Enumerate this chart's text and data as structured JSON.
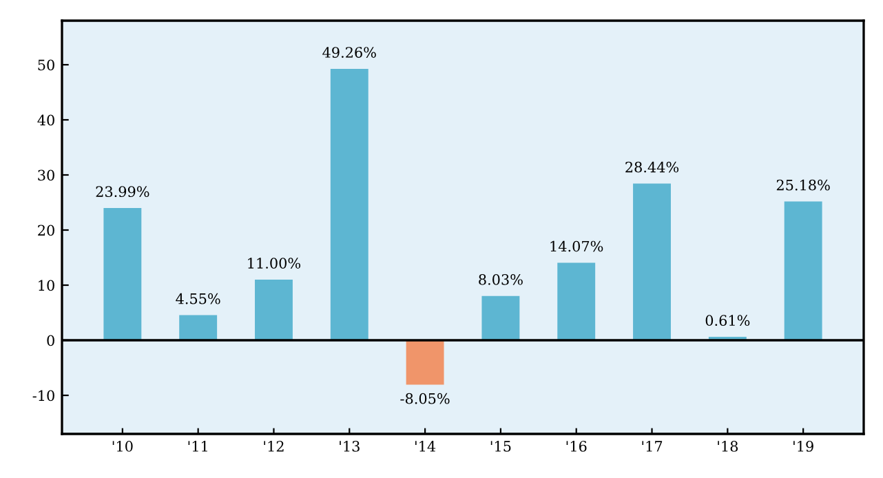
{
  "chart_data": {
    "type": "bar",
    "categories": [
      "'10",
      "'11",
      "'12",
      "'13",
      "'14",
      "'15",
      "'16",
      "'17",
      "'18",
      "'19"
    ],
    "values": [
      23.99,
      4.55,
      11.0,
      49.26,
      -8.05,
      8.03,
      14.07,
      28.44,
      0.61,
      25.18
    ],
    "colors": [
      "#5db6d2",
      "#5db6d2",
      "#5db6d2",
      "#5db6d2",
      "#f0956a",
      "#5db6d2",
      "#5db6d2",
      "#5db6d2",
      "#5db6d2",
      "#5db6d2"
    ],
    "value_labels": [
      "23.99%",
      "4.55%",
      "11.00%",
      "49.26%",
      "-8.05%",
      "8.03%",
      "14.07%",
      "28.44%",
      "0.61%",
      "25.18%"
    ],
    "ylim": [
      -17,
      58
    ],
    "yticks": [
      -10,
      0,
      10,
      20,
      30,
      40,
      50
    ],
    "ref_lines": [
      {
        "axis": "y",
        "value": 0,
        "color": "#000000"
      }
    ],
    "grid": false,
    "legend": false
  }
}
